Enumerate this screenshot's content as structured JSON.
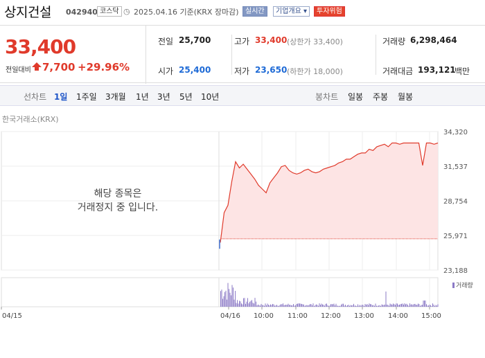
{
  "header": {
    "name": "상지건설",
    "code": "042940",
    "market": "코스닥",
    "date_info": "2025.04.16  기준(KRX 장마감)",
    "btn_live": "실시간",
    "btn_info": "기업개요",
    "btn_warn": "투자위험"
  },
  "summary": {
    "price": "33,400",
    "change_label": "전일대비",
    "change": "7,700",
    "change_pct": "+29.96%",
    "prev_label": "전일",
    "prev": "25,700",
    "high_label": "고가",
    "high": "33,400",
    "upper_limit": "(상한가 33,400)",
    "volume_label": "거래량",
    "volume": "6,298,464",
    "open_label": "시가",
    "open": "25,400",
    "low_label": "저가",
    "low": "23,650",
    "lower_limit": "(하한가 18,000)",
    "amount_label": "거래대금",
    "amount": "193,121",
    "amount_unit": "백만"
  },
  "tabs": {
    "line_label": "선차트",
    "line": [
      "1일",
      "1주일",
      "3개월",
      "1년",
      "3년",
      "5년",
      "10년"
    ],
    "candle_label": "봉차트",
    "candle": [
      "일봉",
      "주봉",
      "월봉"
    ]
  },
  "chart": {
    "source": "한국거래소(KRX)",
    "halt_line1": "해당 종목은",
    "halt_line2": "거래정지 중 입니다.",
    "volume_legend": "거래량",
    "colors": {
      "up": "#e03a2b",
      "fill": "#fde4e4",
      "volume": "#8b79c6",
      "open_bar": "#3f6fd0"
    }
  },
  "chart_data": {
    "type": "area",
    "y_ticks": [
      "34,320",
      "31,537",
      "28,754",
      "25,971",
      "23,188"
    ],
    "x_ticks": [
      "04/15",
      "04/16",
      "10:00",
      "11:00",
      "12:00",
      "13:00",
      "14:00",
      "15:00"
    ],
    "ylim": [
      23188,
      34320
    ],
    "prev_close": 25700,
    "price_series": [
      25400,
      27800,
      28400,
      30300,
      31900,
      31400,
      31700,
      31300,
      30900,
      30500,
      30000,
      29700,
      29400,
      30200,
      30600,
      31000,
      31500,
      31600,
      31200,
      31000,
      30900,
      31000,
      31200,
      31300,
      31100,
      31000,
      31100,
      31300,
      31400,
      31500,
      31600,
      31800,
      31900,
      32100,
      32100,
      32300,
      32500,
      32600,
      32600,
      32900,
      32800,
      33100,
      33200,
      33300,
      33100,
      33400,
      33400,
      33300,
      33400,
      33400,
      33400,
      33400,
      33400,
      31600,
      33400,
      33400,
      33300,
      33400
    ]
  }
}
